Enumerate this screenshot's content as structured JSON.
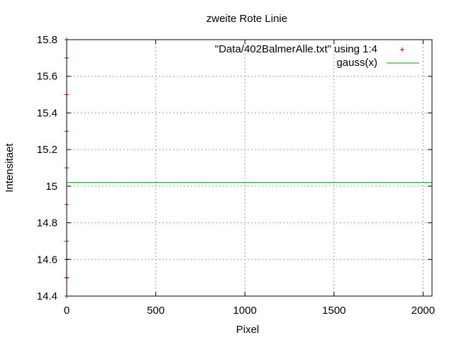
{
  "chart_data": {
    "type": "scatter",
    "title": "zweite Rote Linie",
    "xlabel": "Pixel",
    "ylabel": "Intensitaet",
    "xlim": [
      0,
      2050
    ],
    "ylim": [
      14.4,
      15.8
    ],
    "x_ticks": [
      0,
      500,
      1000,
      1500,
      2000
    ],
    "y_ticks": [
      14.4,
      14.6,
      14.8,
      15.0,
      15.2,
      15.4,
      15.6,
      15.8
    ],
    "x_tick_labels": [
      "0",
      "500",
      "1000",
      "1500",
      "2000"
    ],
    "y_tick_labels": [
      "14.4",
      "14.6",
      "14.8",
      "15",
      "15.2",
      "15.4",
      "15.6",
      "15.8"
    ],
    "grid": true,
    "legend_position": "top-right",
    "series": [
      {
        "name": "\"Data/402BalmerAlle.txt\" using 1:4",
        "style": "points",
        "marker": "+",
        "color": "#cc0000",
        "x": [
          0,
          0,
          0,
          0,
          0,
          0,
          0,
          0,
          0,
          0,
          0,
          0,
          0,
          0,
          0
        ],
        "y": [
          15.8,
          15.7,
          15.5,
          15.3,
          15.1,
          14.9,
          14.7,
          14.6,
          14.6,
          14.5,
          14.5,
          14.5,
          14.4,
          14.6,
          14.5
        ]
      },
      {
        "name": "gauss(x)",
        "style": "line",
        "color": "#00a000",
        "x": [
          0,
          2050
        ],
        "y": [
          15.02,
          15.02
        ]
      }
    ]
  }
}
